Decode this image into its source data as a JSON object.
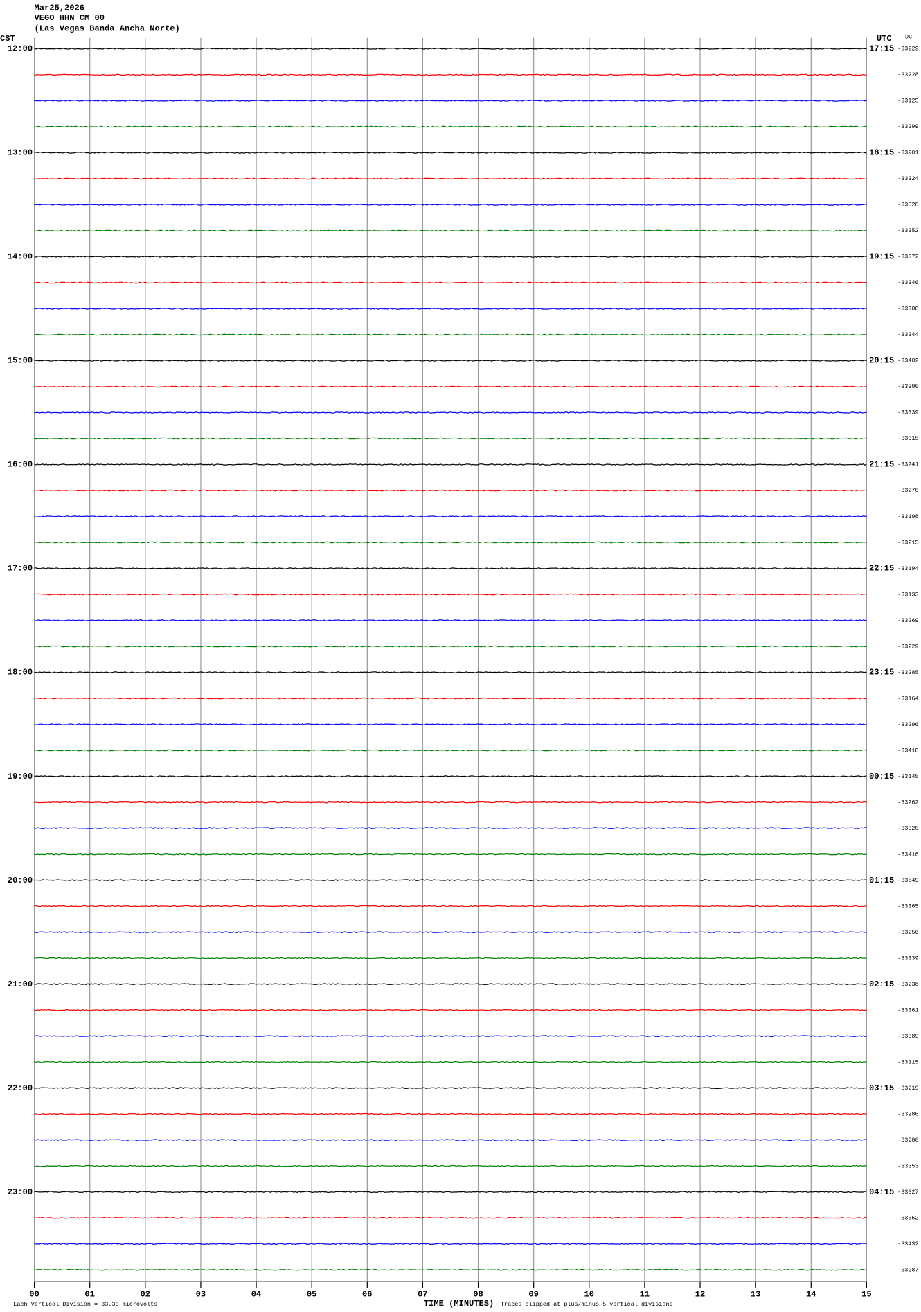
{
  "header": {
    "lines": [
      "Mar25,2026",
      "VEGO HHN CM 00",
      "(Las Vegas Banda Ancha Norte)"
    ]
  },
  "chart_data": {
    "type": "helicorder",
    "left_label": "CST",
    "right_label": "UTC",
    "dc_label": "DC",
    "x_label": "TIME (MINUTES)",
    "xlim": [
      0,
      15
    ],
    "xticks": [
      {
        "value": 0,
        "label": "00"
      },
      {
        "value": 1,
        "label": "01"
      },
      {
        "value": 2,
        "label": "02"
      },
      {
        "value": 3,
        "label": "03"
      },
      {
        "value": 4,
        "label": "04"
      },
      {
        "value": 5,
        "label": "05"
      },
      {
        "value": 6,
        "label": "06"
      },
      {
        "value": 7,
        "label": "07"
      },
      {
        "value": 8,
        "label": "08"
      },
      {
        "value": 9,
        "label": "09"
      },
      {
        "value": 10,
        "label": "10"
      },
      {
        "value": 11,
        "label": "11"
      },
      {
        "value": 12,
        "label": "12"
      },
      {
        "value": 13,
        "label": "13"
      },
      {
        "value": 14,
        "label": "14"
      },
      {
        "value": 15,
        "label": "15"
      }
    ],
    "hours": [
      {
        "cst": "12:00",
        "utc": "17:15"
      },
      {
        "cst": "13:00",
        "utc": "18:15"
      },
      {
        "cst": "14:00",
        "utc": "19:15"
      },
      {
        "cst": "15:00",
        "utc": "20:15"
      },
      {
        "cst": "16:00",
        "utc": "21:15"
      },
      {
        "cst": "17:00",
        "utc": "22:15"
      },
      {
        "cst": "18:00",
        "utc": "23:15"
      },
      {
        "cst": "19:00",
        "utc": "00:15"
      },
      {
        "cst": "20:00",
        "utc": "01:15"
      },
      {
        "cst": "21:00",
        "utc": "02:15"
      },
      {
        "cst": "22:00",
        "utc": "03:15"
      },
      {
        "cst": "23:00",
        "utc": "04:15"
      }
    ],
    "trace_colors": [
      "#000000",
      "#ff0000",
      "#0000ff",
      "#008000"
    ],
    "dc": [
      -33229,
      -33228,
      -33125,
      -33299,
      -33901,
      -33324,
      -33528,
      -33352,
      -33372,
      -33346,
      -33308,
      -33344,
      -33402,
      -33300,
      -33339,
      -33315,
      -33241,
      -33270,
      -33198,
      -33215,
      -33194,
      -33133,
      -33269,
      -33229,
      -33285,
      -33164,
      -33296,
      -33418,
      -33145,
      -33262,
      -33320,
      -33416,
      -33549,
      -33365,
      -33256,
      -33339,
      -33238,
      -33361,
      -33389,
      -33115,
      -33219,
      -33286,
      -33206,
      -33353,
      -33327,
      -33352,
      -33432,
      -33287
    ],
    "footer_left": "Each Vertical Division =  33.33 microvolts",
    "footer_right": "Traces clipped at plus/minus 5 vertical divisions"
  }
}
